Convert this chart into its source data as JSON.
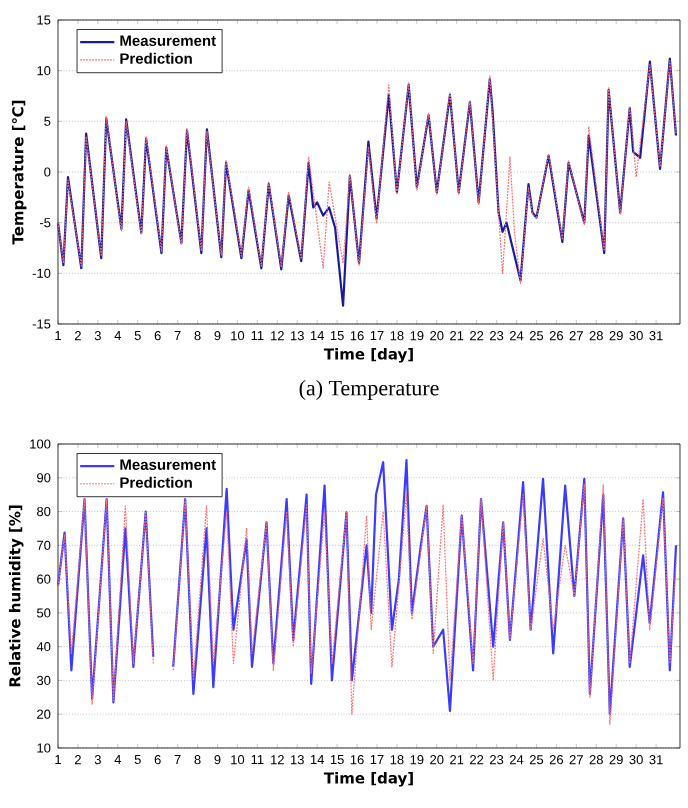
{
  "chart_data": [
    {
      "type": "line",
      "xlabel": "Time [day]",
      "ylabel": "Temperature [℃]",
      "annotations": [
        "(a)  Temperature"
      ],
      "xlim": [
        1,
        32.2
      ],
      "ylim": [
        -15,
        15
      ],
      "xticks": [
        1,
        2,
        3,
        4,
        5,
        6,
        7,
        8,
        9,
        10,
        11,
        12,
        13,
        14,
        15,
        16,
        17,
        18,
        19,
        20,
        21,
        22,
        23,
        24,
        25,
        26,
        27,
        28,
        29,
        30,
        31
      ],
      "yticks": [
        -15,
        -10,
        -5,
        0,
        5,
        10,
        15
      ],
      "grid": "y",
      "legend": "top left",
      "series": [
        {
          "name": "Measurement",
          "color": "#1a1aa0",
          "line_style": "solid",
          "x": [
            1.0,
            1.27,
            1.5,
            2.17,
            2.41,
            3.17,
            3.42,
            4.18,
            4.42,
            5.18,
            5.42,
            6.19,
            6.43,
            7.19,
            7.47,
            8.19,
            8.47,
            9.19,
            9.43,
            10.2,
            10.56,
            11.2,
            11.57,
            12.2,
            12.57,
            13.2,
            13.57,
            13.8,
            14.0,
            14.3,
            14.6,
            14.9,
            15.3,
            15.64,
            16.1,
            16.57,
            16.98,
            17.59,
            18.0,
            18.59,
            19.0,
            19.59,
            20.0,
            20.66,
            21.1,
            21.66,
            22.1,
            22.66,
            22.8,
            23.1,
            23.3,
            23.5,
            24.2,
            24.6,
            24.8,
            25.0,
            25.61,
            26.3,
            26.61,
            27.4,
            27.62,
            28.4,
            28.62,
            29.2,
            29.68,
            29.85,
            30.2,
            30.69,
            31.2,
            31.69,
            32.0
          ],
          "values": [
            -5,
            -9.2,
            -0.5,
            -9.5,
            3.8,
            -8.5,
            5.3,
            -5.6,
            5.2,
            -6,
            3.3,
            -8,
            2.4,
            -7,
            4.1,
            -8,
            4.2,
            -8.4,
            0.9,
            -8.5,
            -1.8,
            -9.5,
            -1.2,
            -9.6,
            -2.3,
            -8.8,
            0.9,
            -3.5,
            -3,
            -4.3,
            -3.5,
            -5.5,
            -13.2,
            -0.4,
            -9,
            3,
            -4.6,
            7.6,
            -2,
            8.6,
            -1.5,
            5.6,
            -2,
            7.6,
            -2,
            6.9,
            -3,
            9.2,
            6,
            -4,
            -5.9,
            -5,
            -10.7,
            -1.2,
            -4,
            -4.5,
            1.6,
            -6.9,
            0.9,
            -5,
            3.6,
            -8,
            8.1,
            -4,
            6.3,
            2,
            1.4,
            10.9,
            0.3,
            11.2,
            3.6
          ]
        },
        {
          "name": "Prediction",
          "color": "#ff6a6a",
          "line_style": "dotted",
          "x": [
            1.0,
            1.27,
            1.5,
            2.17,
            2.41,
            3.17,
            3.42,
            4.18,
            4.42,
            5.18,
            5.42,
            6.19,
            6.43,
            7.19,
            7.47,
            8.19,
            8.47,
            9.19,
            9.43,
            10.2,
            10.56,
            11.2,
            11.57,
            12.2,
            12.57,
            13.2,
            13.57,
            14.3,
            14.6,
            15.3,
            15.64,
            16.1,
            16.57,
            16.98,
            17.59,
            18.0,
            18.59,
            19.0,
            19.59,
            20.0,
            20.66,
            21.1,
            21.66,
            22.1,
            22.66,
            23.1,
            23.3,
            23.67,
            23.9,
            24.2,
            24.6,
            24.8,
            25.0,
            25.61,
            26.3,
            26.61,
            27.4,
            27.62,
            28.4,
            28.62,
            29.2,
            29.68,
            29.85,
            30.0,
            30.69,
            31.2,
            31.69,
            32.0
          ],
          "values": [
            -5,
            -9,
            -0.8,
            -9.3,
            3.5,
            -8.3,
            5.5,
            -5.8,
            5,
            -6.2,
            3.5,
            -7.8,
            2.6,
            -7.2,
            4.3,
            -7.8,
            4,
            -8.2,
            1.2,
            -8.3,
            -1.5,
            -9.3,
            -1,
            -9.4,
            -2,
            -8.6,
            1.5,
            -9.5,
            -1,
            -9,
            -0.2,
            -9.2,
            2.5,
            -5,
            8.6,
            -2.2,
            8.8,
            -1.8,
            5.8,
            -2.2,
            7.8,
            -2.2,
            7,
            -3.2,
            9.5,
            -4,
            -10,
            1.5,
            -6,
            -11,
            -1.5,
            -4.2,
            -4.6,
            1.8,
            -6.7,
            1.1,
            -5.2,
            4.5,
            -7.8,
            8.3,
            -4.2,
            6.5,
            3,
            -0.5,
            10.6,
            0.5,
            11,
            3.8
          ]
        }
      ]
    },
    {
      "type": "line",
      "xlabel": "Time [day]",
      "ylabel": "Relative humidity [%]",
      "xlim": [
        1,
        32.2
      ],
      "ylim": [
        10,
        100
      ],
      "xticks": [
        1,
        2,
        3,
        4,
        5,
        6,
        7,
        8,
        9,
        10,
        11,
        12,
        13,
        14,
        15,
        16,
        17,
        18,
        19,
        20,
        21,
        22,
        23,
        24,
        25,
        26,
        27,
        28,
        29,
        30,
        31
      ],
      "yticks": [
        10,
        20,
        30,
        40,
        50,
        60,
        70,
        80,
        90,
        100
      ],
      "grid": "y",
      "legend": "top left",
      "series": [
        {
          "name": "Measurement",
          "color": "#3b3bff",
          "line_style": "solid",
          "x": [
            1.0,
            1.33,
            1.67,
            2.33,
            2.71,
            3.44,
            3.78,
            4.38,
            4.78,
            5.4,
            5.78,
            6.28,
            6.78,
            7.38,
            7.79,
            8.45,
            8.79,
            9.46,
            9.8,
            10.46,
            10.73,
            11.46,
            11.8,
            12.47,
            12.8,
            13.47,
            13.7,
            14.37,
            14.74,
            15.47,
            15.74,
            16.48,
            16.71,
            16.95,
            17.31,
            17.75,
            18.1,
            18.48,
            18.75,
            19.2,
            19.49,
            19.82,
            20.32,
            20.66,
            21.25,
            21.82,
            22.22,
            22.83,
            23.33,
            23.67,
            24.33,
            24.71,
            25.33,
            25.84,
            26.44,
            26.9,
            27.4,
            27.68,
            28.35,
            28.68,
            29.35,
            29.68,
            30.35,
            30.68,
            31.35,
            31.69,
            32.0
          ],
          "values": [
            58,
            73.8,
            33,
            83.7,
            24.5,
            83.7,
            23.5,
            75,
            34,
            80,
            37,
            null,
            34,
            83.7,
            26,
            75,
            28,
            86.7,
            45,
            71.8,
            34,
            76.8,
            35,
            83.7,
            42,
            85,
            29,
            87.7,
            30,
            79.8,
            30,
            70,
            50,
            85,
            94.6,
            45,
            60,
            95.2,
            50,
            70,
            81.7,
            40,
            45,
            21,
            78.8,
            33,
            83.7,
            40,
            76.8,
            42,
            88.7,
            45,
            89.7,
            38,
            87.7,
            55,
            89.7,
            26,
            85,
            20,
            78,
            34,
            67,
            47,
            85.7,
            33,
            70
          ]
        },
        {
          "name": "Prediction",
          "color": "#ff6a6a",
          "line_style": "dotted",
          "x": [
            1.0,
            1.33,
            1.67,
            2.33,
            2.71,
            3.44,
            3.78,
            4.38,
            4.78,
            5.4,
            5.78,
            6.28,
            6.78,
            7.38,
            7.79,
            8.45,
            8.79,
            9.46,
            9.8,
            10.46,
            10.73,
            11.46,
            11.8,
            12.47,
            12.8,
            13.47,
            13.7,
            14.37,
            14.74,
            15.47,
            15.74,
            16.48,
            16.71,
            17.31,
            17.75,
            18.48,
            18.75,
            19.49,
            19.82,
            20.32,
            20.66,
            21.25,
            21.82,
            22.22,
            22.83,
            23.33,
            23.67,
            24.33,
            24.71,
            25.33,
            25.84,
            26.44,
            26.9,
            27.4,
            27.68,
            28.35,
            28.68,
            29.35,
            29.68,
            30.35,
            30.68,
            31.35,
            31.69,
            32.0
          ],
          "values": [
            58,
            73,
            38,
            83.7,
            23,
            83.7,
            24,
            81.7,
            35,
            80,
            35,
            null,
            33,
            83.7,
            30,
            81.7,
            35,
            80,
            35,
            75,
            38,
            76.8,
            33,
            80,
            40,
            82,
            32,
            80,
            35,
            79.8,
            20,
            78.8,
            45,
            80,
            34,
            85,
            48,
            81.7,
            38,
            82,
            30,
            78.8,
            35,
            83.7,
            30,
            76.8,
            42,
            85,
            45,
            72,
            45,
            70,
            55,
            88,
            25,
            88,
            17,
            78,
            35,
            83.7,
            45,
            84,
            35,
            65
          ]
        }
      ]
    }
  ]
}
